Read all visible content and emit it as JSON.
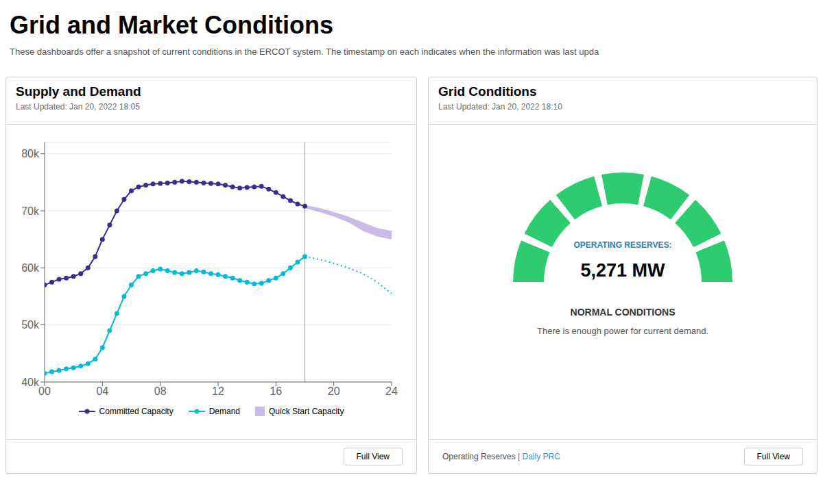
{
  "title": "Grid and Market Conditions",
  "subtitle": "These dashboards offer a snapshot of current conditions in the ERCOT system. The timestamp on each indicates when the information was last upda",
  "chart_data": [
    {
      "type": "line",
      "title": "Supply and Demand",
      "subtitle": "Last Updated: Jan 20, 2022 18:05",
      "xlim": [
        0,
        24
      ],
      "xticks": [
        {
          "value": 0,
          "label": "00"
        },
        {
          "value": 4,
          "label": "04"
        },
        {
          "value": 8,
          "label": "08"
        },
        12,
        16,
        20,
        24
      ],
      "ylim": [
        40000,
        82000
      ],
      "yticks": [
        {
          "value": 40000,
          "label": "40k"
        },
        {
          "value": 50000,
          "label": "50k"
        },
        {
          "value": 60000,
          "label": "60k"
        },
        {
          "value": 70000,
          "label": "70k"
        },
        {
          "value": 80000,
          "label": "80k"
        }
      ],
      "grid": "y",
      "vlines": [
        18
      ],
      "series": [
        {
          "name": "Committed Capacity",
          "color": "#3d2b8e",
          "marker": "circle",
          "line_style": "solid",
          "x": [
            0,
            0.5,
            1,
            1.5,
            2,
            2.5,
            3,
            3.5,
            4,
            4.5,
            5,
            5.5,
            6,
            6.5,
            7,
            7.5,
            8,
            8.5,
            9,
            9.5,
            10,
            10.5,
            11,
            11.5,
            12,
            12.5,
            13,
            13.5,
            14,
            14.5,
            15,
            15.5,
            16,
            16.5,
            17,
            17.5,
            18
          ],
          "values": [
            57000,
            57500,
            58000,
            58200,
            58500,
            59000,
            60000,
            62000,
            65000,
            67500,
            70000,
            72000,
            73500,
            74200,
            74500,
            74700,
            74800,
            74900,
            75000,
            75200,
            75100,
            75000,
            74900,
            74800,
            74700,
            74500,
            74200,
            74000,
            74100,
            74200,
            74300,
            73800,
            73200,
            72500,
            71800,
            71200,
            70800
          ]
        },
        {
          "name": "Demand",
          "color": "#00bcd4",
          "marker": "circle",
          "line_style": "solid",
          "x": [
            0,
            0.5,
            1,
            1.5,
            2,
            2.5,
            3,
            3.5,
            4,
            4.5,
            5,
            5.5,
            6,
            6.5,
            7,
            7.5,
            8,
            8.5,
            9,
            9.5,
            10,
            10.5,
            11,
            11.5,
            12,
            12.5,
            13,
            13.5,
            14,
            14.5,
            15,
            15.5,
            16,
            16.5,
            17,
            17.5,
            18
          ],
          "values": [
            41500,
            41800,
            42000,
            42300,
            42500,
            42800,
            43200,
            44000,
            46000,
            49000,
            52000,
            55000,
            57000,
            58500,
            59000,
            59500,
            59800,
            59500,
            59200,
            59000,
            59200,
            59500,
            59300,
            59000,
            58800,
            58500,
            58200,
            57800,
            57500,
            57200,
            57300,
            57800,
            58200,
            59000,
            60000,
            61000,
            62000
          ]
        },
        {
          "name": "Quick Start Capacity",
          "type": "area",
          "color": "#b39ddb",
          "x": [
            18,
            19,
            20,
            21,
            22,
            23,
            24
          ],
          "lower": [
            70500,
            69800,
            69000,
            68000,
            66500,
            65500,
            65000
          ],
          "upper": [
            71000,
            70500,
            69800,
            69000,
            68000,
            67000,
            66500
          ]
        },
        {
          "color": "#00bcd4",
          "line_style": "dotted",
          "x": [
            18,
            19,
            20,
            21,
            22,
            23,
            24
          ],
          "values": [
            62000,
            61500,
            60800,
            60000,
            59000,
            57500,
            55500
          ]
        }
      ],
      "annotations": [
        {
          "text": "Full View"
        }
      ]
    },
    {
      "type": "gauge",
      "title": "Grid Conditions",
      "subtitle": "Last Updated: Jan 20, 2022 18:10",
      "color": "#2ecc71",
      "annotations": [
        {
          "text": "OPERATING RESERVES:",
          "color": "#2980b9"
        },
        {
          "text": "5,271 MW"
        },
        {
          "text": "NORMAL CONDITIONS"
        },
        {
          "text": "There is enough power for current demand."
        },
        {
          "text": "Operating Reserves | "
        },
        {
          "text": "Daily PRC",
          "color": "#3498db"
        },
        {
          "text": "Full View"
        }
      ]
    }
  ]
}
